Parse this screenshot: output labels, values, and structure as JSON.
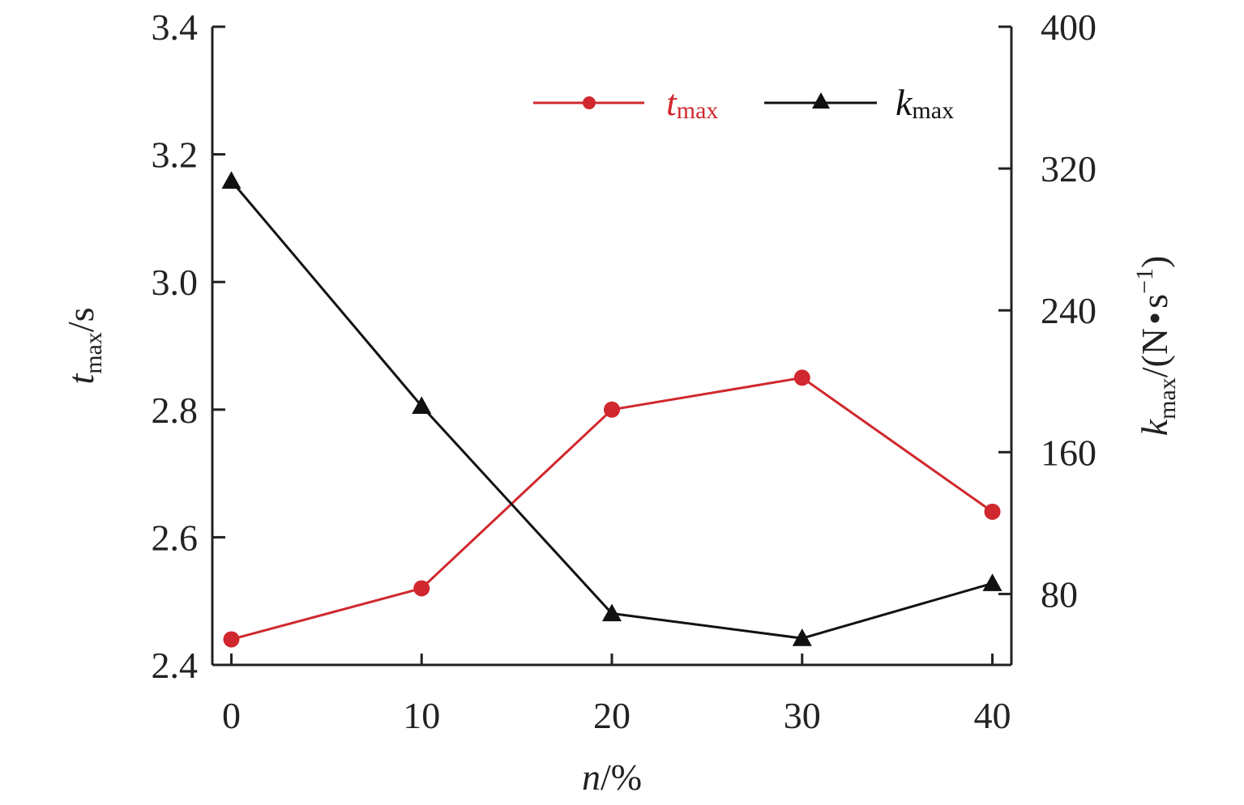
{
  "chart_data": {
    "type": "line",
    "x": [
      0,
      10,
      20,
      30,
      40
    ],
    "xlim": [
      -1,
      41
    ],
    "x_ticks": [
      "0",
      "10",
      "20",
      "30",
      "40"
    ],
    "xlabel": {
      "var": "n",
      "unit": "/%"
    },
    "y_left": {
      "label": {
        "var": "t",
        "sub": "max",
        "unit": "/s"
      },
      "ylim": [
        2.4,
        3.4
      ],
      "ticks": [
        "2.4",
        "2.6",
        "2.8",
        "3.0",
        "3.2",
        "3.4"
      ]
    },
    "y_right": {
      "label": {
        "var": "k",
        "sub": "max",
        "unit_pre": "/(N",
        "dot": "•",
        "unit_s": "s",
        "sup": "−1",
        "unit_post": ")"
      },
      "ylim": [
        40,
        400
      ],
      "ticks": [
        "80",
        "160",
        "240",
        "320",
        "400"
      ]
    },
    "series": [
      {
        "name": {
          "var": "t",
          "sub": "max"
        },
        "axis": "left",
        "marker": "circle",
        "color": "#d0282e",
        "values": [
          2.44,
          2.52,
          2.8,
          2.85,
          2.64
        ]
      },
      {
        "name": {
          "var": "k",
          "sub": "max"
        },
        "axis": "right",
        "marker": "triangle",
        "color": "#111111",
        "values": [
          313,
          186,
          69,
          55,
          86
        ]
      }
    ],
    "legend_position": "top-right",
    "grid": false
  }
}
